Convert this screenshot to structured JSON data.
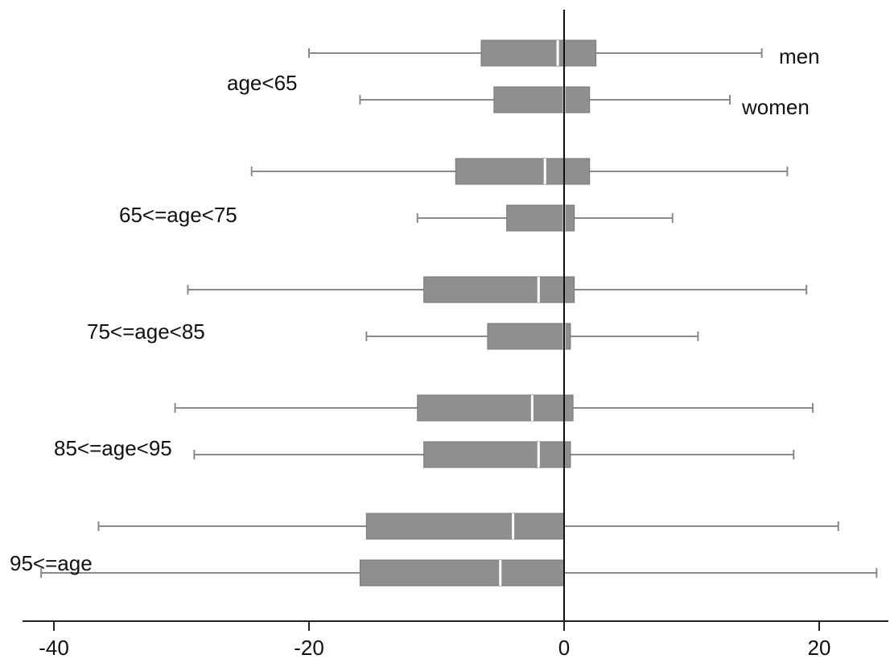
{
  "chart_data": {
    "type": "box",
    "title": "",
    "xlabel": "",
    "ylabel": "",
    "xlim": [
      -42.5,
      25
    ],
    "xticks": [
      -40,
      -20,
      0,
      20
    ],
    "xtick_labels": [
      "-40",
      "-20",
      "0",
      "20"
    ],
    "reference_line": 0,
    "series": [
      {
        "name": "men",
        "legend_label": "men"
      },
      {
        "name": "women",
        "legend_label": "women"
      }
    ],
    "groups": [
      {
        "label": "age<65",
        "boxes": [
          {
            "series": "men",
            "whisker_low": -20.0,
            "q1": -6.5,
            "median": -0.5,
            "q3": 2.5,
            "whisker_high": 15.5
          },
          {
            "series": "women",
            "whisker_low": -16.0,
            "q1": -5.5,
            "median": 0,
            "q3": 2.0,
            "whisker_high": 13.0
          }
        ]
      },
      {
        "label": "65<=age<75",
        "boxes": [
          {
            "series": "men",
            "whisker_low": -24.5,
            "q1": -8.5,
            "median": -1.5,
            "q3": 2.0,
            "whisker_high": 17.5
          },
          {
            "series": "women",
            "whisker_low": -11.5,
            "q1": -4.5,
            "median": 0,
            "q3": 0.8,
            "whisker_high": 8.5
          }
        ]
      },
      {
        "label": "75<=age<85",
        "boxes": [
          {
            "series": "men",
            "whisker_low": -29.5,
            "q1": -11.0,
            "median": -2.0,
            "q3": 0.8,
            "whisker_high": 19.0
          },
          {
            "series": "women",
            "whisker_low": -15.5,
            "q1": -6.0,
            "median": 0,
            "q3": 0.5,
            "whisker_high": 10.5
          }
        ]
      },
      {
        "label": "85<=age<95",
        "boxes": [
          {
            "series": "men",
            "whisker_low": -30.5,
            "q1": -11.5,
            "median": -2.5,
            "q3": 0.7,
            "whisker_high": 19.5
          },
          {
            "series": "women",
            "whisker_low": -29.0,
            "q1": -11.0,
            "median": -2.0,
            "q3": 0.5,
            "whisker_high": 18.0
          }
        ]
      },
      {
        "label": "95<=age",
        "boxes": [
          {
            "series": "men",
            "whisker_low": -36.5,
            "q1": -15.5,
            "median": -4.0,
            "q3": 0,
            "whisker_high": 21.5
          },
          {
            "series": "women",
            "whisker_low": -41.0,
            "q1": -16.0,
            "median": -5.0,
            "q3": 0,
            "whisker_high": 24.5
          }
        ]
      }
    ],
    "colors": {
      "box_fill": "#8f8f8f",
      "box_stroke": "#777777",
      "whisker": "#8a8a8a",
      "axis": "#222222",
      "reference_line": "#111111",
      "text": "#111111"
    }
  }
}
